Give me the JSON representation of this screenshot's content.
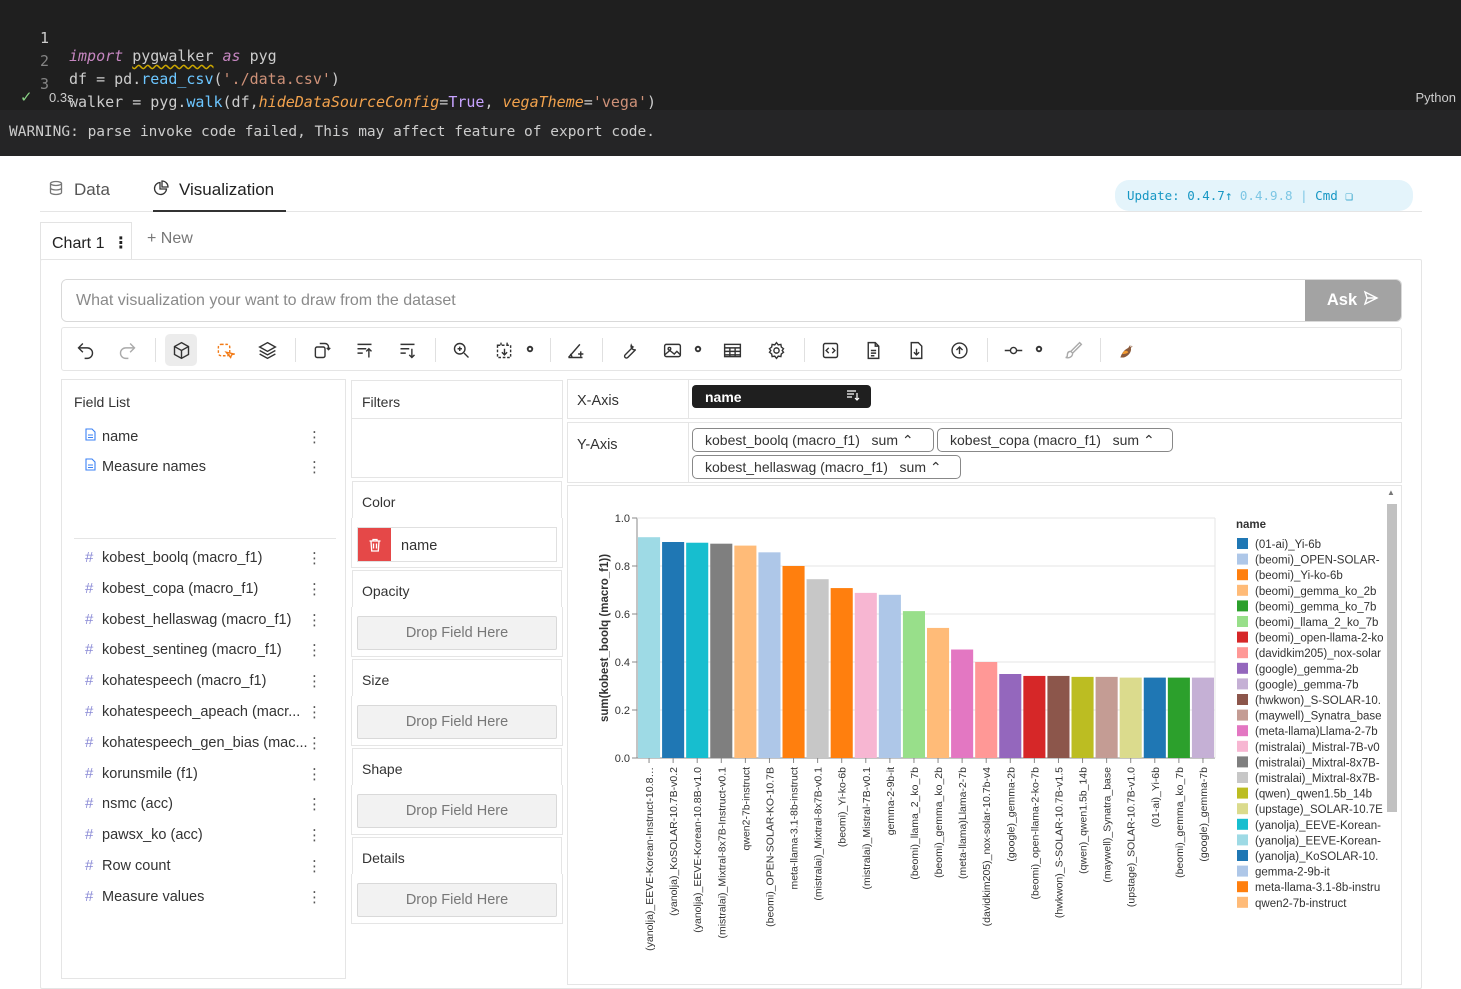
{
  "code": {
    "lines": [
      {
        "number": "1",
        "import": "import",
        "module": "pygwalker",
        "as": "as",
        "alias": "pyg"
      },
      {
        "number": "2",
        "text_a": "df = pd.",
        "fn": "read_csv",
        "text_b": "(",
        "str": "'./data.csv'",
        "text_c": ")"
      },
      {
        "number": "3",
        "text_a": "walker = pyg.",
        "fn": "walk",
        "text_b": "(df,",
        "param1": "hideDataSourceConfig",
        "eq1": "=",
        "val1": "True",
        "comma": ", ",
        "param2": "vegaTheme",
        "eq2": "=",
        "val2": "'vega'",
        "text_c": ")"
      }
    ],
    "status_icon": "check-icon",
    "exec_time": "0.3s",
    "language": "Python"
  },
  "output": {
    "warning": "WARNING: parse invoke code failed, This may affect feature of export code."
  },
  "tabs": [
    {
      "label": "Data",
      "icon": "database-icon"
    },
    {
      "label": "Visualization",
      "icon": "chart-pie-icon"
    }
  ],
  "version_badge": {
    "text": "Update: 0.4.7↑",
    "next": "0.4.9.8",
    "sep": "|",
    "cmd": "Cmd ❏"
  },
  "chart_tabs": {
    "active": "Chart 1",
    "new": "+ New"
  },
  "ask": {
    "placeholder": "What visualization your want to draw from the dataset",
    "button": "Ask"
  },
  "toolbar_icons": [
    "undo-icon",
    "redo-icon",
    "cube-icon",
    "lasso-icon",
    "layers-icon",
    "transpose-icon",
    "sort-ascending-icon",
    "sort-descending-icon",
    "zoom-icon",
    "resize-icon",
    "gear-icon",
    "axis-icon",
    "wrench-icon",
    "image-icon",
    "gear-icon",
    "table-icon",
    "settings-icon",
    "code-icon",
    "document-icon",
    "download-icon",
    "upload-icon",
    "commit-icon",
    "gear-icon",
    "brush-icon",
    "bird-logo-icon"
  ],
  "field_list": {
    "title": "Field List",
    "dimensions": [
      "name",
      "Measure names"
    ],
    "measures": [
      "kobest_boolq (macro_f1)",
      "kobest_copa (macro_f1)",
      "kobest_hellaswag (macro_f1)",
      "kobest_sentineg (macro_f1)",
      "kohatespeech (macro_f1)",
      "kohatespeech_apeach (macr...",
      "kohatespeech_gen_bias (mac...",
      "korunsmile (f1)",
      "nsmc (acc)",
      "pawsx_ko (acc)",
      "Row count",
      "Measure values"
    ]
  },
  "encodings": {
    "filters": "Filters",
    "color": "Color",
    "color_field": "name",
    "opacity": "Opacity",
    "size": "Size",
    "shape": "Shape",
    "details": "Details",
    "drop_placeholder": "Drop Field Here"
  },
  "axes": {
    "x_label": "X-Axis",
    "x_field": "name",
    "y_label": "Y-Axis",
    "y_fields": [
      {
        "field": "kobest_boolq (macro_f1)",
        "agg": "sum"
      },
      {
        "field": "kobest_copa (macro_f1)",
        "agg": "sum"
      },
      {
        "field": "kobest_hellaswag (macro_f1)",
        "agg": "sum"
      }
    ]
  },
  "chart_data": {
    "type": "bar",
    "ylabel": "sum(kobest_boolq (macro_f1))",
    "ylim": [
      0,
      1.0
    ],
    "yticks": [
      "0.0",
      "0.2",
      "0.4",
      "0.6",
      "0.8",
      "1.0"
    ],
    "legend_title": "name",
    "legend_placement": "right",
    "categories": [
      "(yanolja)_EEVE-Korean-Instruct-10.8…",
      "(yanolja)_KoSOLAR-10.7B-v0.2",
      "(yanolja)_EEVE-Korean-10.8B-v1.0",
      "(mistralai)_Mixtral-8x7B-Instruct-v0.1",
      "qwen2-7b-instruct",
      "(beomi)_OPEN-SOLAR-KO-10.7B",
      "meta-llama-3.1-8b-instruct",
      "(mistralai)_Mixtral-8x7B-v0.1",
      "(beomi)_Yi-ko-6b",
      "(mistralai)_Mistral-7B-v0.1",
      "gemma-2-9b-it",
      "(beomi)_llama_2_ko_7b",
      "(beomi)_gemma_ko_2b",
      "(meta-llama)Llama-2-7b",
      "(davidkim205)_nox-solar-10.7b-v4",
      "(google)_gemma-2b",
      "(beomi)_open-llama-2-ko-7b",
      "(hwkwon)_S-SOLAR-10.7B-v1.5",
      "(qwen)_qwen1.5b_14b",
      "(maywell)_Synatra_base",
      "(upstage)_SOLAR-10.7B-v1.0",
      "(01-ai)_Yi-6b",
      "(beomi)_gemma_ko_7b",
      "(google)_gemma-7b"
    ],
    "values": [
      0.92,
      0.9,
      0.897,
      0.893,
      0.885,
      0.857,
      0.8,
      0.745,
      0.708,
      0.688,
      0.68,
      0.612,
      0.542,
      0.452,
      0.4,
      0.35,
      0.342,
      0.342,
      0.338,
      0.338,
      0.335,
      0.335,
      0.335,
      0.335
    ],
    "colors": [
      "#9edae5",
      "#1f77b4",
      "#17becf",
      "#7f7f7f",
      "#ffbb78",
      "#aec7e8",
      "#ff7f0e",
      "#c7c7c7",
      "#ff7f0e",
      "#f7b6d2",
      "#aec7e8",
      "#98df8a",
      "#ffbb78",
      "#e377c2",
      "#ff9896",
      "#9467bd",
      "#d62728",
      "#8c564b",
      "#bcbd22",
      "#c49c94",
      "#dbdb8d",
      "#1f77b4",
      "#2ca02c",
      "#c5b0d5"
    ],
    "legend": [
      {
        "label": "(01-ai)_Yi-6b",
        "color": "#1f77b4"
      },
      {
        "label": "(beomi)_OPEN-SOLAR-",
        "color": "#aec7e8"
      },
      {
        "label": "(beomi)_Yi-ko-6b",
        "color": "#ff7f0e"
      },
      {
        "label": "(beomi)_gemma_ko_2b",
        "color": "#ffbb78"
      },
      {
        "label": "(beomi)_gemma_ko_7b",
        "color": "#2ca02c"
      },
      {
        "label": "(beomi)_llama_2_ko_7b",
        "color": "#98df8a"
      },
      {
        "label": "(beomi)_open-llama-2-ko",
        "color": "#d62728"
      },
      {
        "label": "(davidkim205)_nox-solar",
        "color": "#ff9896"
      },
      {
        "label": "(google)_gemma-2b",
        "color": "#9467bd"
      },
      {
        "label": "(google)_gemma-7b",
        "color": "#c5b0d5"
      },
      {
        "label": "(hwkwon)_S-SOLAR-10.",
        "color": "#8c564b"
      },
      {
        "label": "(maywell)_Synatra_base",
        "color": "#c49c94"
      },
      {
        "label": "(meta-llama)Llama-2-7b",
        "color": "#e377c2"
      },
      {
        "label": "(mistralai)_Mistral-7B-v0",
        "color": "#f7b6d2"
      },
      {
        "label": "(mistralai)_Mixtral-8x7B-",
        "color": "#7f7f7f"
      },
      {
        "label": "(mistralai)_Mixtral-8x7B-",
        "color": "#c7c7c7"
      },
      {
        "label": "(qwen)_qwen1.5b_14b",
        "color": "#bcbd22"
      },
      {
        "label": "(upstage)_SOLAR-10.7E",
        "color": "#dbdb8d"
      },
      {
        "label": "(yanolja)_EEVE-Korean-",
        "color": "#17becf"
      },
      {
        "label": "(yanolja)_EEVE-Korean-",
        "color": "#9edae5"
      },
      {
        "label": "(yanolja)_KoSOLAR-10.",
        "color": "#1f77b4"
      },
      {
        "label": "gemma-2-9b-it",
        "color": "#aec7e8"
      },
      {
        "label": "meta-llama-3.1-8b-instru",
        "color": "#ff7f0e"
      },
      {
        "label": "qwen2-7b-instruct",
        "color": "#ffbb78"
      }
    ]
  }
}
